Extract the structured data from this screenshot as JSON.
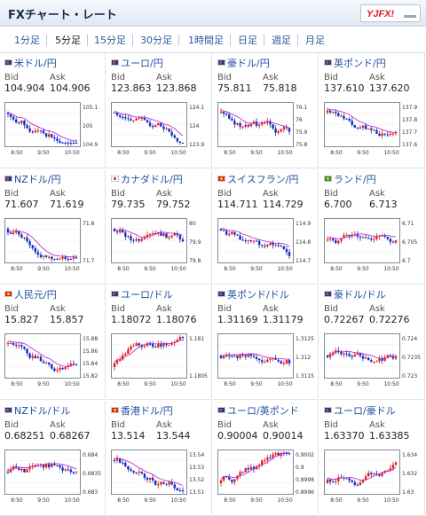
{
  "header": {
    "title": "FXチャート・レート",
    "logo_text": "YJFX!"
  },
  "tabs": [
    {
      "label": "1分足",
      "active": false
    },
    {
      "label": "5分足",
      "active": true
    },
    {
      "label": "15分足",
      "active": false
    },
    {
      "label": "30分足",
      "active": false
    },
    {
      "label": "1時間足",
      "active": false
    },
    {
      "label": "日足",
      "active": false
    },
    {
      "label": "週足",
      "active": false
    },
    {
      "label": "月足",
      "active": false
    }
  ],
  "labels": {
    "bid": "Bid",
    "ask": "Ask"
  },
  "colors": {
    "up": "#e02020",
    "down": "#1530c0",
    "ma": "#c030d0",
    "link": "#1f4fa0"
  },
  "pairs": [
    {
      "name": "米ドル/円",
      "flag": "us",
      "bid": "104.904",
      "ask": "104.906",
      "chart": {
        "ylabels": [
          "105.1",
          "105",
          "104.9"
        ],
        "xlabels": [
          "8:50",
          "9:50",
          "10:50"
        ],
        "trend": "down",
        "seed": 1
      }
    },
    {
      "name": "ユーロ/円",
      "flag": "eu",
      "bid": "123.863",
      "ask": "123.868",
      "chart": {
        "ylabels": [
          "124.1",
          "124",
          "123.9"
        ],
        "xlabels": [
          "8:50",
          "9:50",
          "10:50"
        ],
        "trend": "down",
        "seed": 2
      }
    },
    {
      "name": "豪ドル/円",
      "flag": "au",
      "bid": "75.811",
      "ask": "75.818",
      "chart": {
        "ylabels": [
          "76.1",
          "76",
          "75.9",
          "75.8"
        ],
        "xlabels": [
          "8:50",
          "9:50",
          "10:50"
        ],
        "trend": "down",
        "seed": 3
      }
    },
    {
      "name": "英ポンド/円",
      "flag": "gb",
      "bid": "137.610",
      "ask": "137.620",
      "chart": {
        "ylabels": [
          "137.9",
          "137.8",
          "137.7",
          "137.6"
        ],
        "xlabels": [
          "8:50",
          "9:50",
          "10:50"
        ],
        "trend": "down",
        "seed": 4
      }
    },
    {
      "name": "NZドル/円",
      "flag": "nz",
      "bid": "71.607",
      "ask": "71.619",
      "chart": {
        "ylabels": [
          "71.8",
          "71.7"
        ],
        "xlabels": [
          "8:50",
          "9:50",
          "10:50"
        ],
        "trend": "down",
        "seed": 5
      }
    },
    {
      "name": "カナダドル/円",
      "flag": "ca",
      "bid": "79.735",
      "ask": "79.752",
      "chart": {
        "ylabels": [
          "80",
          "79.9",
          "79.8"
        ],
        "xlabels": [
          "8:50",
          "9:50",
          "10:50"
        ],
        "trend": "down",
        "seed": 6
      }
    },
    {
      "name": "スイスフラン/円",
      "flag": "ch",
      "bid": "114.711",
      "ask": "114.729",
      "chart": {
        "ylabels": [
          "114.9",
          "114.8",
          "114.7"
        ],
        "xlabels": [
          "8:50",
          "9:50",
          "10:50"
        ],
        "trend": "down",
        "seed": 7
      }
    },
    {
      "name": "ランド/円",
      "flag": "za",
      "bid": "6.700",
      "ask": "6.713",
      "chart": {
        "ylabels": [
          "6.71",
          "6.705",
          "6.7"
        ],
        "xlabels": [
          "8:50",
          "9:50",
          "10:50"
        ],
        "trend": "flat",
        "seed": 8
      }
    },
    {
      "name": "人民元/円",
      "flag": "cn",
      "bid": "15.827",
      "ask": "15.857",
      "chart": {
        "ylabels": [
          "15.88",
          "15.86",
          "15.84",
          "15.82"
        ],
        "xlabels": [
          "8:50",
          "9:50",
          "10:50"
        ],
        "trend": "down",
        "seed": 9
      }
    },
    {
      "name": "ユーロ/ドル",
      "flag": "eu",
      "bid": "1.18072",
      "ask": "1.18076",
      "chart": {
        "ylabels": [
          "1.181",
          "1.1805"
        ],
        "xlabels": [
          "8:50",
          "9:50",
          "10:50"
        ],
        "trend": "up",
        "seed": 10
      }
    },
    {
      "name": "英ポンド/ドル",
      "flag": "gb",
      "bid": "1.31169",
      "ask": "1.31179",
      "chart": {
        "ylabels": [
          "1.3125",
          "1.312",
          "1.3115"
        ],
        "xlabels": [
          "8:50",
          "9:50",
          "10:50"
        ],
        "trend": "flat",
        "seed": 11
      }
    },
    {
      "name": "豪ドル/ドル",
      "flag": "au",
      "bid": "0.72267",
      "ask": "0.72276",
      "chart": {
        "ylabels": [
          "0.724",
          "0.7235",
          "0.723"
        ],
        "xlabels": [
          "8:50",
          "9:50",
          "10:50"
        ],
        "trend": "flat",
        "seed": 12
      }
    },
    {
      "name": "NZドル/ドル",
      "flag": "nz",
      "bid": "0.68251",
      "ask": "0.68267",
      "chart": {
        "ylabels": [
          "0.684",
          "0.6835",
          "0.683"
        ],
        "xlabels": [
          "8:50",
          "9:50",
          "10:50"
        ],
        "trend": "flat",
        "seed": 13
      }
    },
    {
      "name": "香港ドル/円",
      "flag": "hk",
      "bid": "13.514",
      "ask": "13.544",
      "chart": {
        "ylabels": [
          "13.54",
          "13.53",
          "13.52",
          "13.51"
        ],
        "xlabels": [
          "8:50",
          "9:50",
          "10:50"
        ],
        "trend": "down",
        "seed": 14
      }
    },
    {
      "name": "ユーロ/英ポンド",
      "flag": "eu",
      "bid": "0.90004",
      "ask": "0.90014",
      "chart": {
        "ylabels": [
          "0.9002",
          "0.9",
          "0.8998",
          "0.8996"
        ],
        "xlabels": [
          "8:50",
          "9:50",
          "10:50"
        ],
        "trend": "up",
        "seed": 15
      }
    },
    {
      "name": "ユーロ/豪ドル",
      "flag": "eu",
      "bid": "1.63370",
      "ask": "1.63385",
      "chart": {
        "ylabels": [
          "1.634",
          "1.632",
          "1.63"
        ],
        "xlabels": [
          "8:50",
          "9:50",
          "10:50"
        ],
        "trend": "up",
        "seed": 16
      }
    }
  ]
}
